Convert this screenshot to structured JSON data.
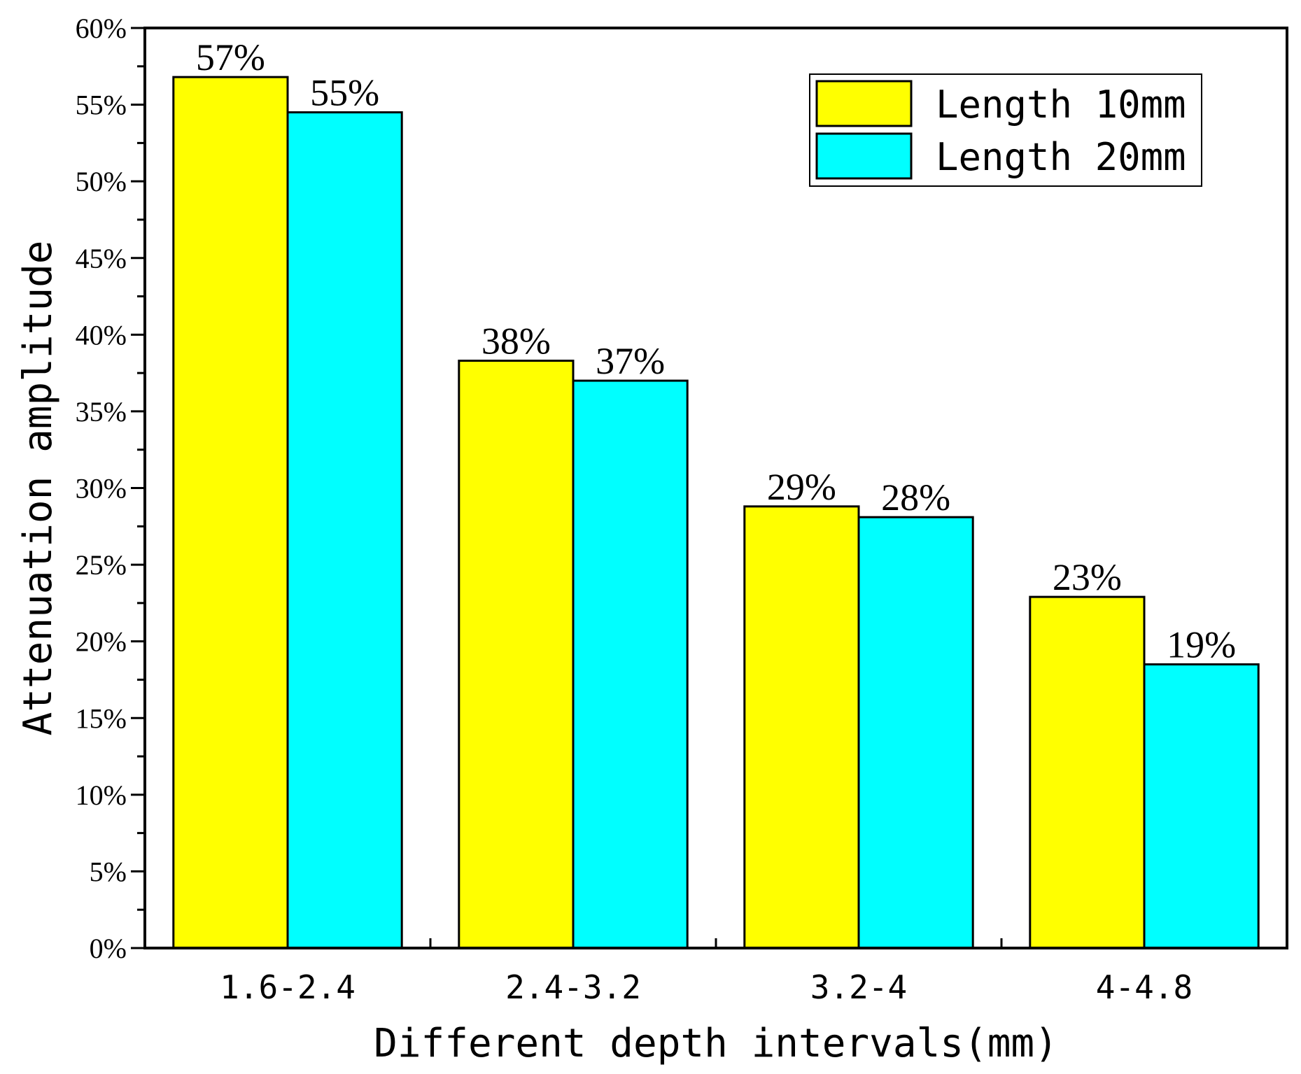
{
  "chart_data": {
    "type": "bar",
    "title": "",
    "xlabel": "Different depth intervals(mm)",
    "ylabel": "Attenuation amplitude",
    "categories": [
      "1.6-2.4",
      "2.4-3.2",
      "3.2-4",
      "4-4.8"
    ],
    "ylim": [
      0,
      60
    ],
    "ytick_step": 5,
    "yticks": [
      "0%",
      "5%",
      "10%",
      "15%",
      "20%",
      "25%",
      "30%",
      "35%",
      "40%",
      "45%",
      "50%",
      "55%",
      "60%"
    ],
    "legend_position": "top-right",
    "series": [
      {
        "name": "Length 10mm",
        "color": "#ffff00",
        "values": [
          56.8,
          38.3,
          28.8,
          22.9
        ],
        "labels": [
          "57%",
          "38%",
          "29%",
          "23%"
        ]
      },
      {
        "name": "Length 20mm",
        "color": "#00ffff",
        "values": [
          54.5,
          37.0,
          28.1,
          18.5
        ],
        "labels": [
          "55%",
          "37%",
          "28%",
          "19%"
        ]
      }
    ]
  }
}
